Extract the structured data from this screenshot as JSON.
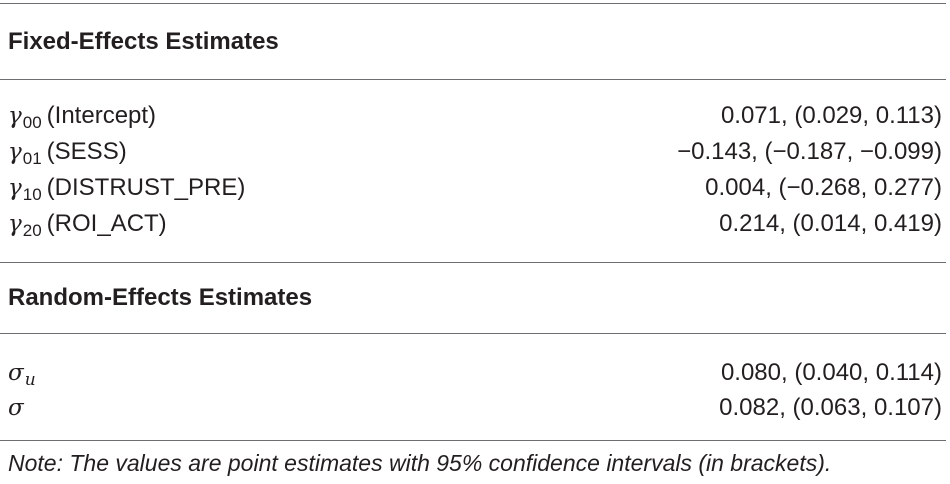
{
  "fixed": {
    "title": "Fixed-Effects Estimates",
    "rows": [
      {
        "symbol": "γ",
        "sub": "00",
        "name": "(Intercept)",
        "value": "0.071, (0.029, 0.113)"
      },
      {
        "symbol": "γ",
        "sub": "01",
        "name": "(SESS)",
        "value": "−0.143, (−0.187, −0.099)"
      },
      {
        "symbol": "γ",
        "sub": "10",
        "name": "(DISTRUST_PRE)",
        "value": "0.004, (−0.268, 0.277)"
      },
      {
        "symbol": "γ",
        "sub": "20",
        "name": "(ROI_ACT)",
        "value": "0.214, (0.014, 0.419)"
      }
    ]
  },
  "random": {
    "title": "Random-Effects Estimates",
    "rows": [
      {
        "symbol": "σ",
        "sub": "u",
        "value": "0.080, (0.040, 0.114)"
      },
      {
        "symbol": "σ",
        "value": "0.082, (0.063, 0.107)"
      }
    ]
  },
  "note": "Note: The values are point estimates with 95% confidence intervals (in brackets)."
}
